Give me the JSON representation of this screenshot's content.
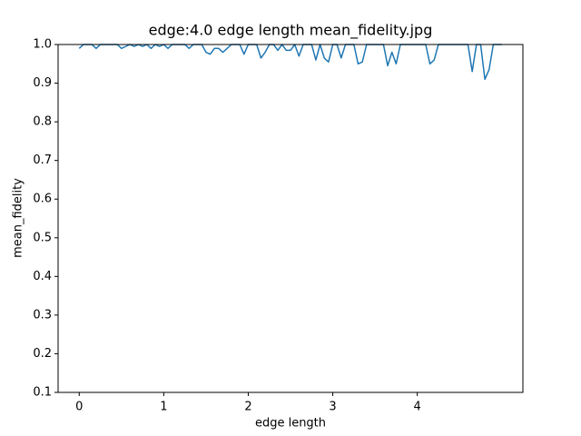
{
  "chart_data": {
    "type": "line",
    "title": "edge:4.0 edge length mean_fidelity.jpg",
    "x_label": "edge length",
    "y_label": "mean_fidelity",
    "x": [
      0.0,
      0.05,
      0.1,
      0.15,
      0.2,
      0.25,
      0.3,
      0.35,
      0.4,
      0.45,
      0.5,
      0.55,
      0.6,
      0.65,
      0.7,
      0.75,
      0.8,
      0.85,
      0.9,
      0.95,
      1.0,
      1.05,
      1.1,
      1.15,
      1.2,
      1.25,
      1.3,
      1.35,
      1.4,
      1.45,
      1.5,
      1.55,
      1.6,
      1.65,
      1.7,
      1.75,
      1.8,
      1.85,
      1.9,
      1.95,
      2.0,
      2.05,
      2.1,
      2.15,
      2.2,
      2.25,
      2.3,
      2.35,
      2.4,
      2.45,
      2.5,
      2.55,
      2.6,
      2.65,
      2.7,
      2.75,
      2.8,
      2.85,
      2.9,
      2.95,
      3.0,
      3.05,
      3.1,
      3.15,
      3.2,
      3.25,
      3.3,
      3.35,
      3.4,
      3.45,
      3.5,
      3.55,
      3.6,
      3.65,
      3.7,
      3.75,
      3.8,
      3.85,
      3.9,
      3.95,
      4.0,
      4.05,
      4.1,
      4.15,
      4.2,
      4.25,
      4.3,
      4.35,
      4.4,
      4.45,
      4.5,
      4.55,
      4.6,
      4.65,
      4.7,
      4.75,
      4.8,
      4.85,
      4.9,
      4.95,
      5.0
    ],
    "series": [
      {
        "name": "mean_fidelity",
        "color": "#1f77b4",
        "values": [
          0.99,
          1.0,
          1.0,
          1.0,
          0.99,
          1.0,
          1.0,
          1.0,
          1.0,
          1.0,
          0.99,
          0.995,
          1.0,
          0.995,
          1.0,
          0.995,
          1.0,
          0.99,
          1.0,
          0.995,
          1.0,
          0.99,
          1.0,
          1.0,
          1.0,
          1.0,
          0.99,
          1.0,
          1.0,
          1.0,
          0.98,
          0.975,
          0.99,
          0.99,
          0.98,
          0.99,
          1.0,
          1.0,
          1.0,
          0.975,
          1.0,
          1.0,
          1.0,
          0.965,
          0.98,
          1.0,
          1.0,
          0.985,
          1.0,
          0.985,
          0.985,
          1.0,
          0.97,
          1.0,
          1.0,
          1.0,
          0.96,
          1.0,
          0.965,
          0.955,
          1.0,
          1.0,
          0.965,
          1.0,
          1.0,
          1.0,
          0.95,
          0.955,
          1.0,
          1.0,
          1.0,
          1.0,
          1.0,
          0.945,
          0.98,
          0.95,
          1.0,
          1.0,
          1.0,
          1.0,
          1.0,
          1.0,
          1.0,
          0.95,
          0.96,
          1.0,
          1.0,
          1.0,
          1.0,
          1.0,
          1.0,
          1.0,
          1.0,
          0.93,
          1.0,
          1.0,
          0.91,
          0.935,
          1.0,
          1.0,
          1.0
        ]
      }
    ],
    "xlim": [
      -0.25,
      5.25
    ],
    "xticks": [
      0,
      1,
      2,
      3,
      4
    ],
    "ylim": [
      0.1,
      1.0
    ],
    "yticks": [
      {
        "value": 0.1,
        "label": "0.1"
      },
      {
        "value": 0.2,
        "label": "0.2"
      },
      {
        "value": 0.3,
        "label": "0.3"
      },
      {
        "value": 0.4,
        "label": "0.4"
      },
      {
        "value": 0.5,
        "label": "0.5"
      },
      {
        "value": 0.6,
        "label": "0.6"
      },
      {
        "value": 0.7,
        "label": "0.7"
      },
      {
        "value": 0.8,
        "label": "0.8"
      },
      {
        "value": 0.9,
        "label": "0.9"
      },
      {
        "value": 1.0,
        "label": "1.0"
      }
    ],
    "grid": false
  }
}
